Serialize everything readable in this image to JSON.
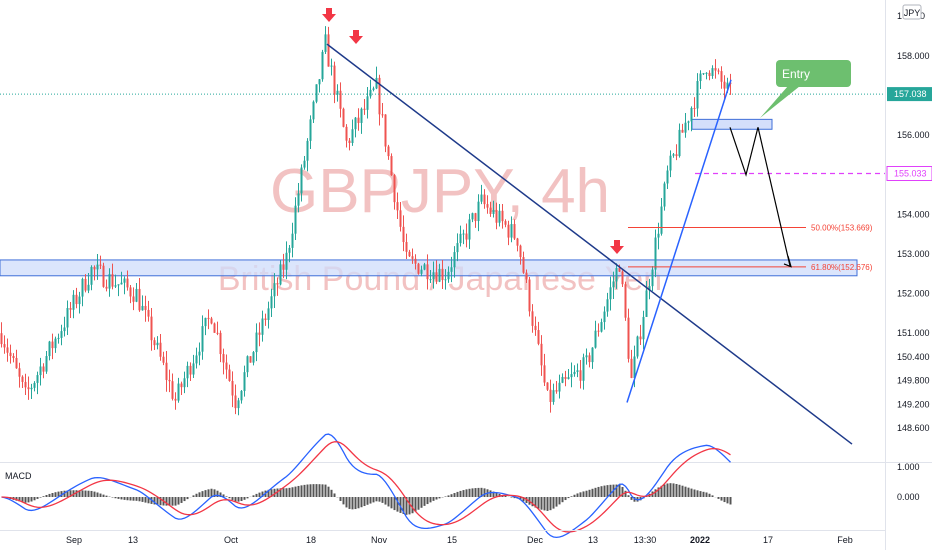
{
  "chart_data": {
    "type": "candlestick",
    "watermark": {
      "symbol_tf": "GBPJPY, 4h",
      "description": "British Pound / Japanese Yen"
    },
    "currency_badge": "JPY",
    "price_axis": {
      "ticks": [
        158.0,
        156.0,
        155.0,
        154.0,
        153.0,
        152.0,
        151.0,
        150.4,
        149.8,
        149.2,
        148.6
      ],
      "tick_labels": [
        "158.000",
        "156.000",
        "155.000",
        "154.000",
        "153.000",
        "152.000",
        "151.000",
        "150.400",
        "149.800",
        "149.200",
        "148.600"
      ],
      "partial_top_label": "1",
      "partial_top_label2": "0",
      "ylim": [
        148.2,
        159.0
      ]
    },
    "time_axis": {
      "labels": [
        "Sep",
        "13",
        "Oct",
        "18",
        "Nov",
        "15",
        "Dec",
        "13",
        "13:30",
        "2022",
        "17",
        "Feb"
      ],
      "bold_labels": [
        "2022"
      ]
    },
    "current_price": {
      "value": 157.038,
      "label": "157.038",
      "color": "#26a69a"
    },
    "level_155": {
      "value": 155.033,
      "label": "155.033",
      "color": "#e040fb"
    },
    "fib_levels": [
      {
        "label": "50.00%(153.669)",
        "value": 153.669,
        "color": "#f44336"
      },
      {
        "label": "61.80%(152.676)",
        "value": 152.676,
        "color": "#f44336"
      }
    ],
    "support_zone": {
      "low": 152.45,
      "high": 152.85
    },
    "entry_zone": {
      "low": 156.15,
      "high": 156.4
    },
    "entry_callout": {
      "text": "Entry",
      "color": "#6dbf6f"
    },
    "key_prices": {
      "sep_start": 151.0,
      "sep_low": 149.4,
      "sep_high": 152.6,
      "oct_low": 149.3,
      "oct_high": 152.9,
      "top_high": 158.3,
      "nov_mid": 155.8,
      "nov_low": 152.5,
      "nov_high": 154.3,
      "dec_low": 149.3,
      "dec_high": 152.8,
      "jan_high": 157.8,
      "last_close": 157.038
    },
    "macd": {
      "label": "MACD",
      "ticks": [
        1.0,
        0.0
      ],
      "tick_labels": [
        "1.000",
        "0.000"
      ],
      "ylim": [
        -1.7,
        1.7
      ],
      "macd_color": "#2962ff",
      "signal_color": "#f23645",
      "hist_color": "#555555"
    },
    "annotations": {
      "top_arrows": 3,
      "arrow_color": "#f23645",
      "trendline_color": "#1e3a8a",
      "rising_line_color": "#2962ff",
      "projection_color": "#000000"
    },
    "colors": {
      "up": "#26a69a",
      "down": "#ef5350",
      "zone_fill": "#cfdcfb",
      "zone_stroke": "#3f6fd8"
    }
  }
}
